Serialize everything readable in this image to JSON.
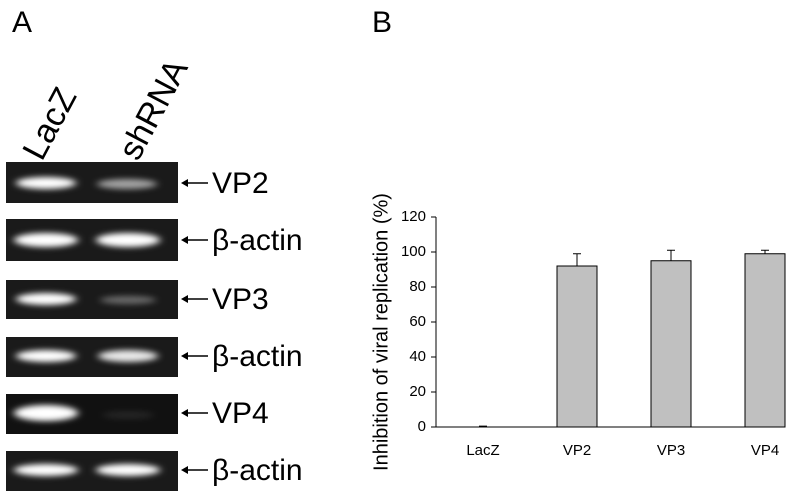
{
  "panel_labels": [
    "A",
    "B"
  ],
  "blot": {
    "lanes": [
      "LacZ",
      "shRNA"
    ],
    "rows": [
      "VP2",
      "β-actin",
      "VP3",
      "β-actin",
      "VP4",
      "β-actin"
    ]
  },
  "chart_data": {
    "type": "bar",
    "y_label": "Inhibition of viral replication (%)",
    "categories": [
      "LacZ",
      "VP2",
      "VP3",
      "VP4"
    ],
    "values": [
      0,
      92,
      95,
      99
    ],
    "errors": [
      0.5,
      7,
      6,
      2
    ],
    "color": "#c0c0c0",
    "ylim": [
      0,
      120
    ],
    "yticks": [
      0,
      20,
      40,
      60,
      80,
      100,
      120
    ]
  }
}
